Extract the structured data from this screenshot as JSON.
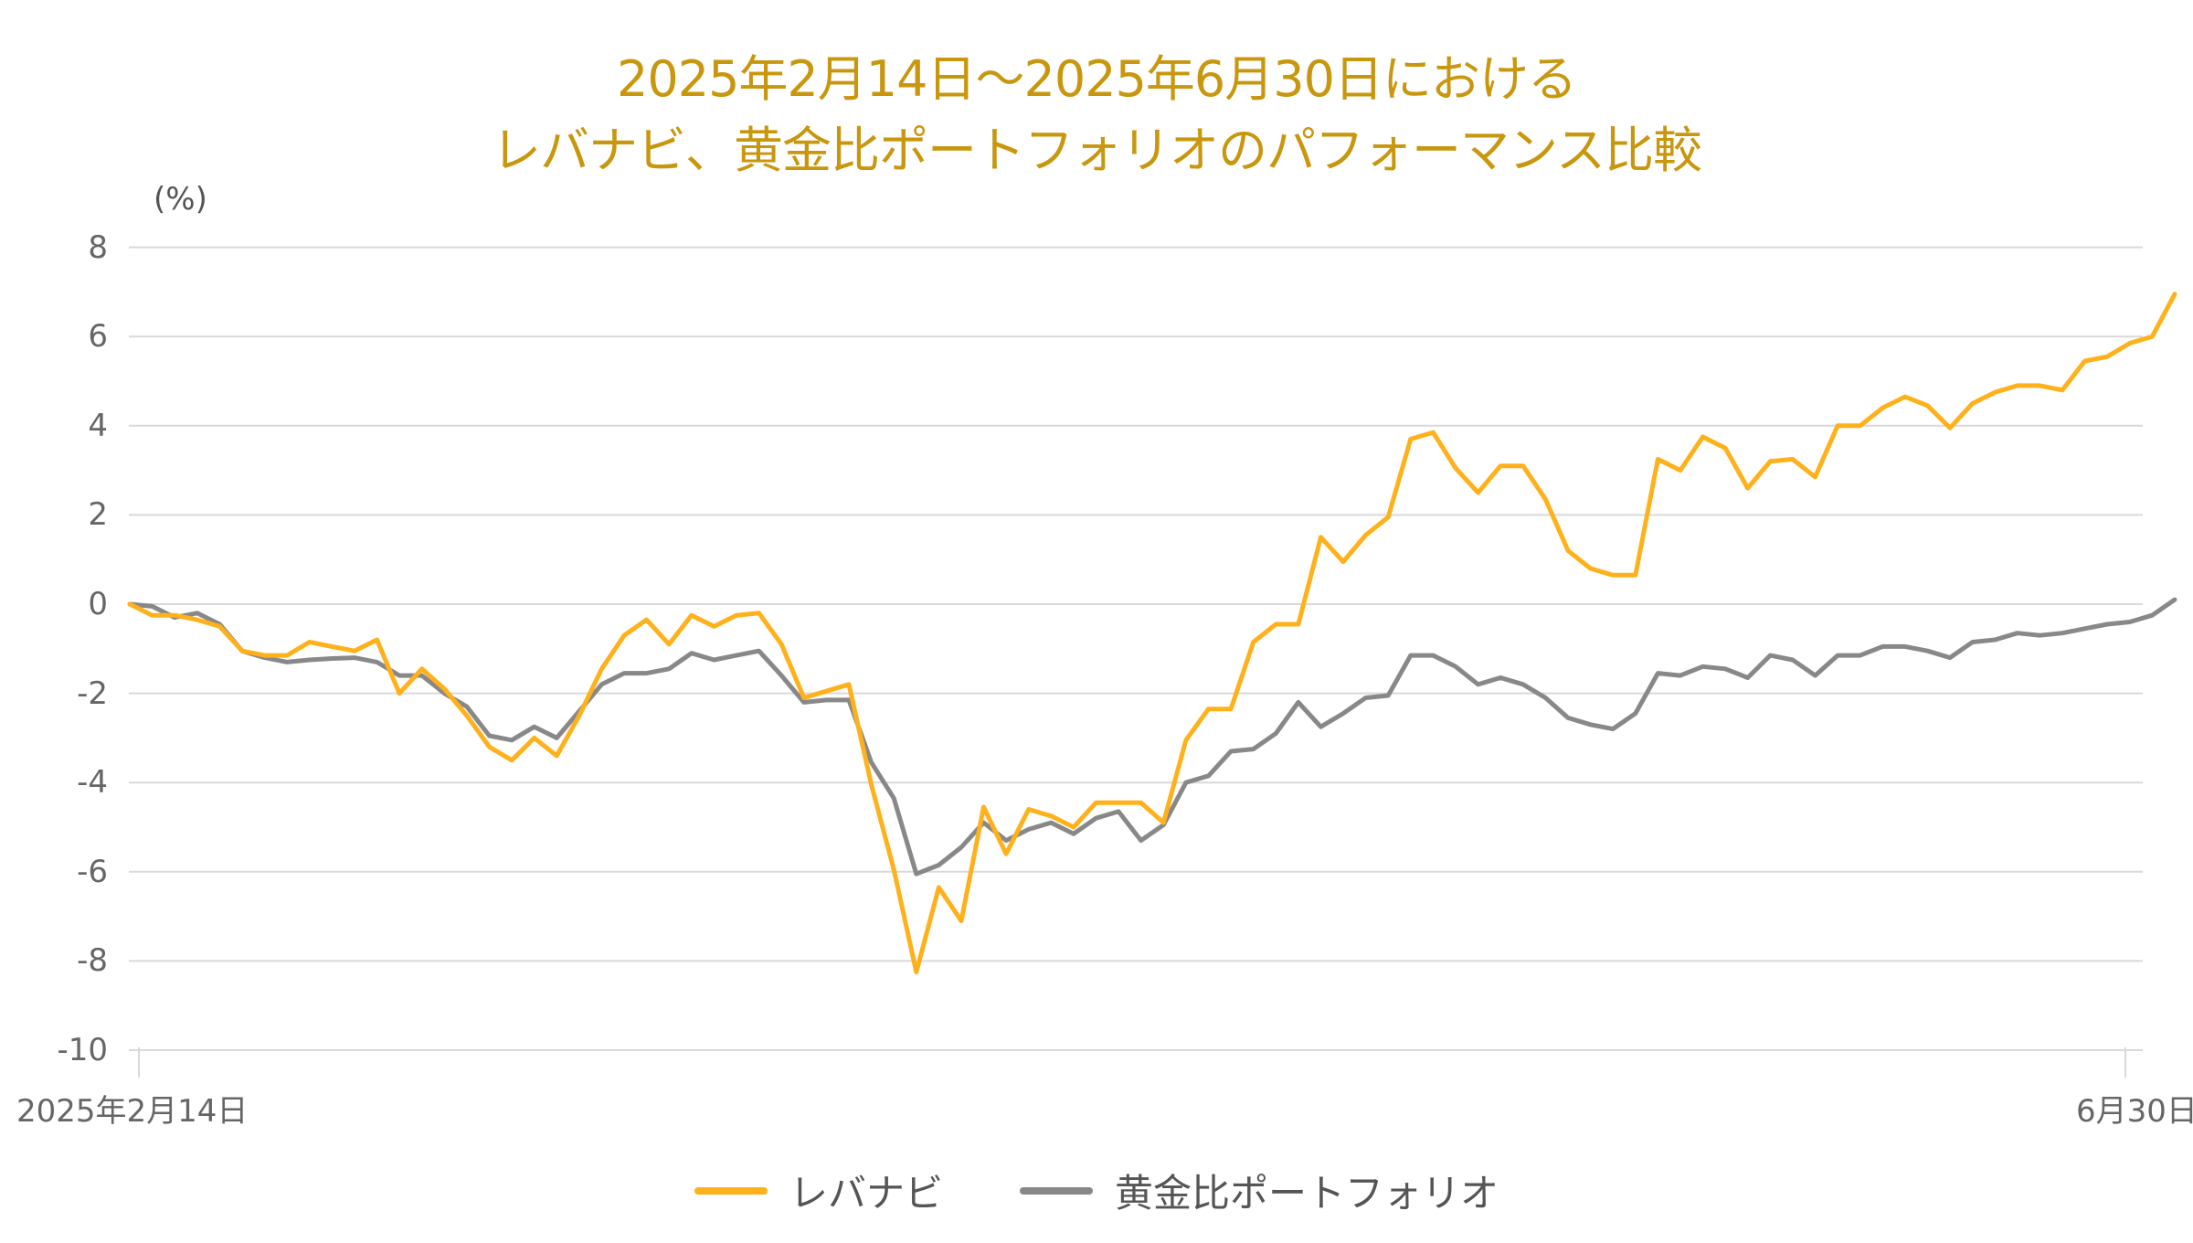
{
  "title": {
    "line1": "2025年2月14日〜2025年6月30日における",
    "line2": "レバナビ、黄金比ポートフォリオのパフォーマンス比較"
  },
  "y_axis": {
    "unit_label": "(%)",
    "ticks": [
      "8",
      "6",
      "4",
      "2",
      "0",
      "-2",
      "-4",
      "-6",
      "-8",
      "-10"
    ]
  },
  "x_axis": {
    "start_label": "2025年2月14日",
    "end_label": "6月30日"
  },
  "legend": {
    "items": [
      {
        "label": "レバナビ",
        "color": "#FFB11B"
      },
      {
        "label": "黄金比ポートフォリオ",
        "color": "#888888"
      }
    ]
  },
  "colors": {
    "title": "#C9970E",
    "grid": "#D9D9D9",
    "axis_text": "#666666",
    "series_1": "#FFB11B",
    "series_2": "#888888"
  },
  "chart_data": {
    "type": "line",
    "title": "2025年2月14日〜2025年6月30日における レバナビ、黄金比ポートフォリオのパフォーマンス比較",
    "xlabel": "",
    "ylabel": "(%)",
    "ylim": [
      -10,
      8
    ],
    "yticks": [
      8,
      6,
      4,
      2,
      0,
      -2,
      -4,
      -6,
      -8,
      -10
    ],
    "x_tick_labels": [
      "2025年2月14日",
      "6月30日"
    ],
    "grid": true,
    "legend_position": "bottom",
    "series": [
      {
        "name": "レバナビ",
        "color": "#FFB11B",
        "values": [
          0,
          -0.25,
          -0.25,
          -0.35,
          -0.5,
          -1.05,
          -1.15,
          -1.15,
          -0.85,
          -0.95,
          -1.05,
          -0.8,
          -2.0,
          -1.45,
          -1.9,
          -2.5,
          -3.2,
          -3.5,
          -3.0,
          -3.4,
          -2.5,
          -1.45,
          -0.7,
          -0.35,
          -0.9,
          -0.25,
          -0.5,
          -0.25,
          -0.2,
          -0.9,
          -2.1,
          -1.95,
          -1.8,
          -4.05,
          -5.95,
          -8.25,
          -6.35,
          -7.1,
          -4.55,
          -5.6,
          -4.6,
          -4.75,
          -5.0,
          -4.45,
          -4.45,
          -4.45,
          -4.9,
          -3.05,
          -2.35,
          -2.35,
          -0.85,
          -0.45,
          -0.45,
          1.5,
          0.95,
          1.55,
          1.95,
          3.7,
          3.85,
          3.05,
          2.5,
          3.1,
          3.1,
          2.35,
          1.2,
          0.8,
          0.65,
          0.65,
          3.25,
          3.0,
          3.75,
          3.5,
          2.6,
          3.2,
          3.25,
          2.85,
          4.0,
          4.0,
          4.4,
          4.65,
          4.45,
          3.95,
          4.5,
          4.75,
          4.9,
          4.9,
          4.8,
          5.45,
          5.55,
          5.85,
          6.0,
          6.95
        ]
      },
      {
        "name": "黄金比ポートフォリオ",
        "color": "#888888",
        "values": [
          0,
          -0.05,
          -0.3,
          -0.2,
          -0.45,
          -1.05,
          -1.2,
          -1.3,
          -1.25,
          -1.22,
          -1.2,
          -1.3,
          -1.6,
          -1.6,
          -2.0,
          -2.3,
          -2.95,
          -3.05,
          -2.75,
          -3.0,
          -2.4,
          -1.8,
          -1.55,
          -1.55,
          -1.45,
          -1.1,
          -1.25,
          -1.15,
          -1.05,
          -1.6,
          -2.2,
          -2.15,
          -2.15,
          -3.55,
          -4.35,
          -6.05,
          -5.85,
          -5.45,
          -4.9,
          -5.3,
          -5.05,
          -4.9,
          -5.15,
          -4.8,
          -4.65,
          -5.3,
          -4.95,
          -4.0,
          -3.85,
          -3.3,
          -3.25,
          -2.9,
          -2.2,
          -2.75,
          -2.45,
          -2.1,
          -2.05,
          -1.15,
          -1.15,
          -1.4,
          -1.8,
          -1.65,
          -1.8,
          -2.1,
          -2.55,
          -2.7,
          -2.8,
          -2.45,
          -1.55,
          -1.6,
          -1.4,
          -1.45,
          -1.65,
          -1.15,
          -1.25,
          -1.6,
          -1.15,
          -1.15,
          -0.95,
          -0.95,
          -1.05,
          -1.2,
          -0.85,
          -0.8,
          -0.65,
          -0.7,
          -0.65,
          -0.55,
          -0.45,
          -0.4,
          -0.25,
          0.1
        ]
      }
    ]
  }
}
